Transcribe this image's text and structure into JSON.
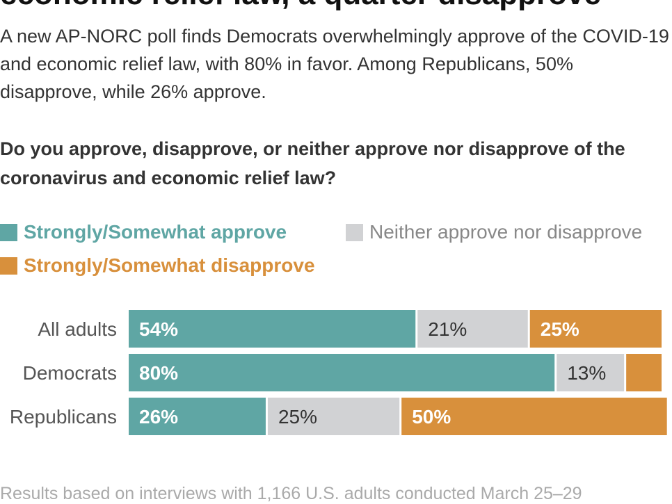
{
  "headline": "economic relief law, a quarter disapprove",
  "dek": "A new AP-NORC poll finds Democrats overwhelmingly approve of the COVID-19 and economic relief law, with 80% in favor. Among Republicans, 50% disapprove, while 26% approve.",
  "question": "Do you approve, disapprove, or neither approve nor disapprove of the coronavirus and economic relief law?",
  "colors": {
    "approve": "#5fa6a4",
    "neither": "#d1d2d4",
    "disapprove": "#d8903c",
    "label_dark": "#333333",
    "label_light": "#ffffff",
    "category_label": "#555555"
  },
  "footnote": "Results based on interviews with 1,166 U.S. adults conducted March 25–29",
  "chart_data": {
    "type": "bar",
    "orientation": "horizontal",
    "stacked": true,
    "categories": [
      "All adults",
      "Democrats",
      "Republicans"
    ],
    "series": [
      {
        "name": "Strongly/Somewhat approve",
        "values": [
          54,
          80,
          26
        ],
        "labels": [
          "54%",
          "80%",
          "26%"
        ]
      },
      {
        "name": "Neither approve nor disapprove",
        "values": [
          21,
          13,
          25
        ],
        "labels": [
          "21%",
          "13%",
          "25%"
        ]
      },
      {
        "name": "Strongly/Somewhat disapprove",
        "values": [
          25,
          7,
          50
        ],
        "labels": [
          "25%",
          "",
          "50%"
        ]
      }
    ],
    "legend_position": "top-left",
    "grid": false
  }
}
